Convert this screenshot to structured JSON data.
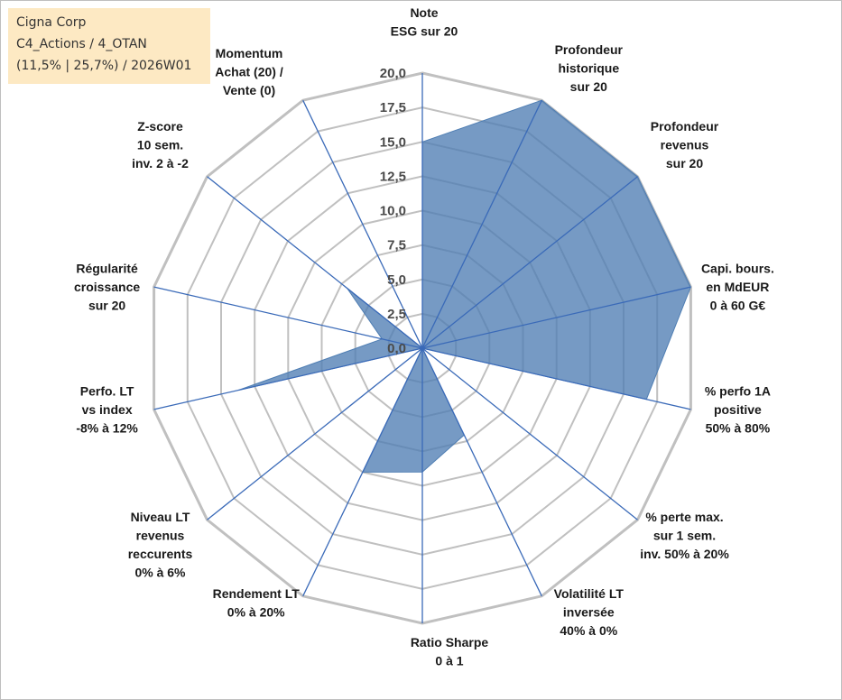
{
  "header": {
    "line1": "Cigna Corp",
    "line2": "C4_Actions / 4_OTAN",
    "line3": "(11,5% | 25,7%) / 2026W01"
  },
  "chart_data": {
    "type": "radar",
    "rmin": 0,
    "rmax": 20,
    "ticks": [
      "0,0",
      "2,5",
      "5,0",
      "7,5",
      "10,0",
      "12,5",
      "15,0",
      "17,5",
      "20,0"
    ],
    "grid": true,
    "legend": "none",
    "colors": {
      "fill": "#4f7eb3",
      "axis": "#3a6ab8",
      "grid": "#c0c0c0"
    },
    "categories": [
      [
        "Note",
        "ESG sur 20"
      ],
      [
        "Profondeur",
        "historique",
        "sur 20"
      ],
      [
        "Profondeur",
        "revenus",
        "sur 20"
      ],
      [
        "Capi. bours.",
        "en MdEUR",
        "0 à 60 G€"
      ],
      [
        "% perfo 1A",
        "positive",
        "50% à 80%"
      ],
      [
        "% perte max.",
        "sur 1 sem.",
        "inv. 50% à 20%"
      ],
      [
        "Volatilité LT",
        "inversée",
        "40% à 0%"
      ],
      [
        "Ratio Sharpe",
        "0 à 1"
      ],
      [
        "Rendement LT",
        "0% à 20%"
      ],
      [
        "Niveau LT",
        "revenus",
        "reccurents",
        "0% à 6%"
      ],
      [
        "Perfo. LT",
        "vs index",
        "-8% à 12%"
      ],
      [
        "Régularité",
        "croissance",
        "sur 20"
      ],
      [
        "Z-score",
        "10 sem.",
        "inv. 2 à -2"
      ],
      [
        "Momentum",
        "Achat (20) /",
        "Vente (0)"
      ]
    ],
    "values": [
      15.0,
      20.0,
      20.0,
      20.0,
      16.7,
      0.0,
      7.0,
      9.0,
      10.0,
      0.0,
      13.7,
      3.0,
      7.0,
      0.0
    ]
  }
}
